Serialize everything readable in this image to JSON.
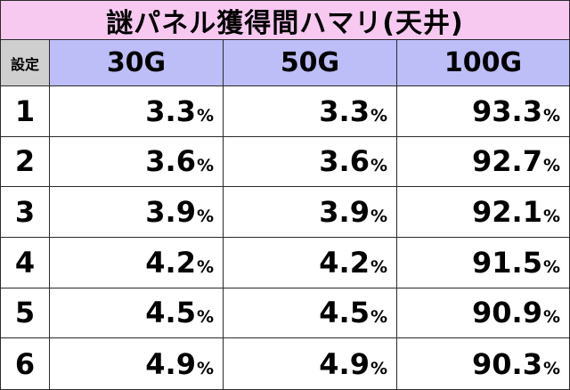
{
  "title": "謎パネル獲得間ハマリ(天井)",
  "header": {
    "setting": "設定",
    "cols": [
      "30G",
      "50G",
      "100G"
    ]
  },
  "unit": "%",
  "rows": [
    {
      "setting": "1",
      "values": [
        "3.3",
        "3.3",
        "93.3"
      ]
    },
    {
      "setting": "2",
      "values": [
        "3.6",
        "3.6",
        "92.7"
      ]
    },
    {
      "setting": "3",
      "values": [
        "3.9",
        "3.9",
        "92.1"
      ]
    },
    {
      "setting": "4",
      "values": [
        "4.2",
        "4.2",
        "91.5"
      ]
    },
    {
      "setting": "5",
      "values": [
        "4.5",
        "4.5",
        "90.9"
      ]
    },
    {
      "setting": "6",
      "values": [
        "4.9",
        "4.9",
        "90.3"
      ]
    }
  ],
  "colors": {
    "title_bg": "#f7c9f1",
    "header_bg": "#bdbdf7",
    "setting_header_bg": "#cfcfcf",
    "border": "#2a2a2a"
  }
}
